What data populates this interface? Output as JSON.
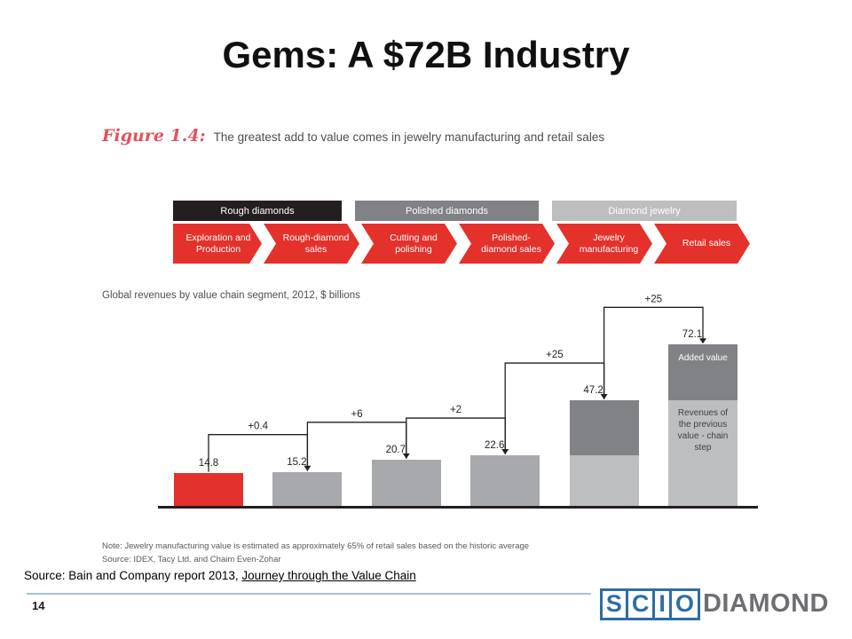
{
  "slide": {
    "title": "Gems: A $72B Industry",
    "page_number": "14",
    "source_prefix": "Source:  Bain and Company report 2013, ",
    "source_link": "Journey through the Value Chain"
  },
  "figure": {
    "caption_label": "Figure 1.4:",
    "caption_text": "The greatest add to value comes in jewelry manufacturing and retail sales",
    "value_chain": {
      "groups": [
        {
          "label": "Rough diamonds",
          "color": "#231f20",
          "text_color": "#ffffff"
        },
        {
          "label": "Polished diamonds",
          "color": "#808285",
          "text_color": "#ffffff"
        },
        {
          "label": "Diamond jewelry",
          "color": "#bcbec0",
          "text_color": "#ffffff"
        }
      ],
      "steps": [
        "Exploration and Production",
        "Rough-diamond sales",
        "Cutting and polishing",
        "Polished-diamond sales",
        "Jewelry manufacturing",
        "Retail sales"
      ],
      "step_color": "#e5312b"
    },
    "notes": [
      "Note:  Jewelry manufacturing value is estimated as approximately 65% of retail sales based on the historic average",
      "Source:  IDEX, Tacy Ltd. and Chaim Even-Zohar"
    ]
  },
  "chart_data": {
    "type": "bar",
    "title": "Global revenues by value chain segment, 2012, $ billions",
    "categories": [
      "Exploration and Production",
      "Rough-diamond sales",
      "Cutting and polishing",
      "Polished-diamond sales",
      "Jewelry manufacturing",
      "Retail sales"
    ],
    "values": [
      14.8,
      15.2,
      20.7,
      22.6,
      47.2,
      72.1
    ],
    "increments": [
      "+0.4",
      "+6",
      "+2",
      "+25",
      "+25"
    ],
    "bars": [
      {
        "label": "14.8",
        "segments": [
          {
            "value": 14.8,
            "color": "red"
          }
        ]
      },
      {
        "label": "15.2",
        "segments": [
          {
            "value": 15.2,
            "color": "mid"
          }
        ]
      },
      {
        "label": "20.7",
        "segments": [
          {
            "value": 20.7,
            "color": "mid"
          }
        ]
      },
      {
        "label": "22.6",
        "segments": [
          {
            "value": 22.6,
            "color": "mid"
          }
        ]
      },
      {
        "label": "47.2",
        "segments": [
          {
            "value": 22.6,
            "color": "light"
          },
          {
            "value": 24.6,
            "color": "dark"
          }
        ]
      },
      {
        "label": "72.1",
        "segments": [
          {
            "value": 47.2,
            "color": "light",
            "text": "Revenues of the previous value - chain step"
          },
          {
            "value": 24.9,
            "color": "dark",
            "text": "Added value"
          }
        ]
      }
    ],
    "colors": {
      "red": "#e5312b",
      "mid": "#a7a9ac",
      "light": "#bcbec0",
      "dark": "#808285"
    },
    "ylim": [
      0,
      75
    ],
    "xlabel": "",
    "ylabel": "$ billions",
    "grid": false,
    "legend_position": "none"
  },
  "logo": {
    "letters": [
      "S",
      "C",
      "I",
      "O"
    ],
    "diamond": "DIAMOND",
    "blue": "#2d6ea5",
    "gray": "#6e6f72"
  }
}
